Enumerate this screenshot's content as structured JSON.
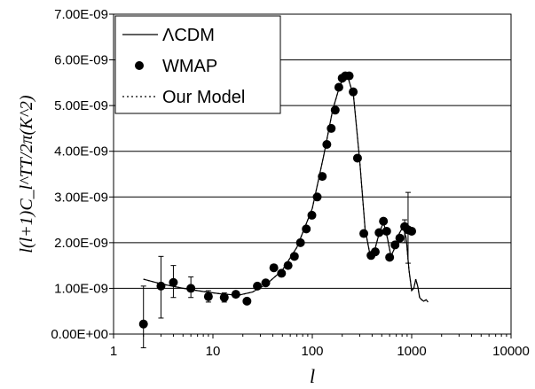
{
  "chart_data": {
    "type": "scatter",
    "title": "",
    "xlabel": "l",
    "ylabel": "l(l+1)C_l^TT/2π(K^2)",
    "x_scale": "log",
    "xlim": [
      1,
      10000
    ],
    "ylim": [
      0,
      7e-09
    ],
    "grid": "horizontal",
    "legend_position": "top-left",
    "x_tick_labels": [
      "1",
      "10",
      "100",
      "1000",
      "10000"
    ],
    "y_tick_labels": [
      "0.00E+00",
      "1.00E-09",
      "2.00E-09",
      "3.00E-09",
      "4.00E-09",
      "5.00E-09",
      "6.00E-09",
      "7.00E-09"
    ],
    "series": [
      {
        "name": "ΛCDM",
        "style": "solid-line",
        "x": [
          2,
          3,
          5,
          8,
          12,
          18,
          25,
          35,
          50,
          70,
          100,
          130,
          160,
          190,
          210,
          230,
          260,
          300,
          340,
          380,
          420,
          470,
          520,
          570,
          620,
          680,
          750,
          820,
          880,
          940,
          1000,
          1050,
          1100,
          1150,
          1200,
          1260,
          1320,
          1400,
          1460
        ],
        "y": [
          1.2e-09,
          1.1e-09,
          1e-09,
          9.3e-10,
          8.8e-10,
          8.5e-10,
          9.2e-10,
          1.1e-09,
          1.4e-09,
          1.9e-09,
          2.75e-09,
          3.9e-09,
          4.9e-09,
          5.45e-09,
          5.62e-09,
          5.6e-09,
          5.2e-09,
          3.8e-09,
          2.3e-09,
          1.75e-09,
          1.8e-09,
          2.2e-09,
          2.45e-09,
          2.1e-09,
          1.7e-09,
          1.9e-09,
          2.2e-09,
          2.35e-09,
          2.1e-09,
          1.4e-09,
          9.5e-10,
          1e-09,
          1.2e-09,
          1.05e-09,
          8e-10,
          7.5e-10,
          7.2e-10,
          7.5e-10,
          7e-10
        ]
      },
      {
        "name": "WMAP",
        "style": "markers",
        "x": [
          2,
          3,
          4,
          6,
          9,
          13,
          17,
          22,
          28,
          34,
          41,
          49,
          57,
          66,
          76,
          87,
          99,
          112,
          126,
          140,
          155,
          170,
          185,
          200,
          215,
          235,
          258,
          285,
          330,
          390,
          430,
          470,
          520,
          560,
          600,
          680,
          760,
          850,
          920,
          1000
        ],
        "y": [
          2.2e-10,
          1.05e-09,
          1.13e-09,
          1e-09,
          8.2e-10,
          8e-10,
          8.7e-10,
          7.2e-10,
          1.05e-09,
          1.12e-09,
          1.45e-09,
          1.33e-09,
          1.5e-09,
          1.7e-09,
          2e-09,
          2.3e-09,
          2.6e-09,
          3e-09,
          3.45e-09,
          4.15e-09,
          4.5e-09,
          4.9e-09,
          5.4e-09,
          5.6e-09,
          5.65e-09,
          5.65e-09,
          5.3e-09,
          3.85e-09,
          2.2e-09,
          1.72e-09,
          1.8e-09,
          2.22e-09,
          2.47e-09,
          2.25e-09,
          1.68e-09,
          1.95e-09,
          2.1e-09,
          2.35e-09,
          2.28e-09,
          2.25e-09
        ],
        "error_bars": [
          {
            "x": 2,
            "low": -3e-10,
            "high": 1.05e-09
          },
          {
            "x": 3,
            "low": 3.5e-10,
            "high": 1.7e-09
          },
          {
            "x": 4,
            "low": 8e-10,
            "high": 1.5e-09
          },
          {
            "x": 6,
            "low": 8e-10,
            "high": 1.25e-09
          },
          {
            "x": 9,
            "low": 7e-10,
            "high": 9.5e-10
          },
          {
            "x": 13,
            "low": 7e-10,
            "high": 9e-10
          },
          {
            "x": 850,
            "low": 2e-09,
            "high": 2.5e-09
          },
          {
            "x": 920,
            "low": 1.55e-09,
            "high": 3.1e-09
          }
        ]
      },
      {
        "name": "Our Model",
        "style": "dotted-line",
        "x": [
          2,
          3,
          5,
          8,
          12,
          18,
          25,
          35,
          50,
          70,
          100,
          130,
          160,
          190,
          210,
          230,
          260,
          300,
          340,
          380,
          420,
          470,
          520,
          570,
          620,
          680,
          750,
          820,
          880,
          940,
          1000,
          1050,
          1100,
          1150,
          1200,
          1260,
          1320,
          1400,
          1460
        ],
        "y": [
          1.2e-09,
          1.1e-09,
          1e-09,
          9.3e-10,
          8.8e-10,
          8.5e-10,
          9.2e-10,
          1.1e-09,
          1.4e-09,
          1.9e-09,
          2.75e-09,
          3.9e-09,
          4.9e-09,
          5.45e-09,
          5.62e-09,
          5.6e-09,
          5.2e-09,
          3.8e-09,
          2.3e-09,
          1.75e-09,
          1.8e-09,
          2.2e-09,
          2.45e-09,
          2.1e-09,
          1.7e-09,
          1.9e-09,
          2.2e-09,
          2.35e-09,
          2.1e-09,
          1.4e-09,
          9.5e-10,
          1e-09,
          1.2e-09,
          1.05e-09,
          8e-10,
          7.5e-10,
          7.2e-10,
          7.5e-10,
          7e-10
        ]
      }
    ]
  }
}
